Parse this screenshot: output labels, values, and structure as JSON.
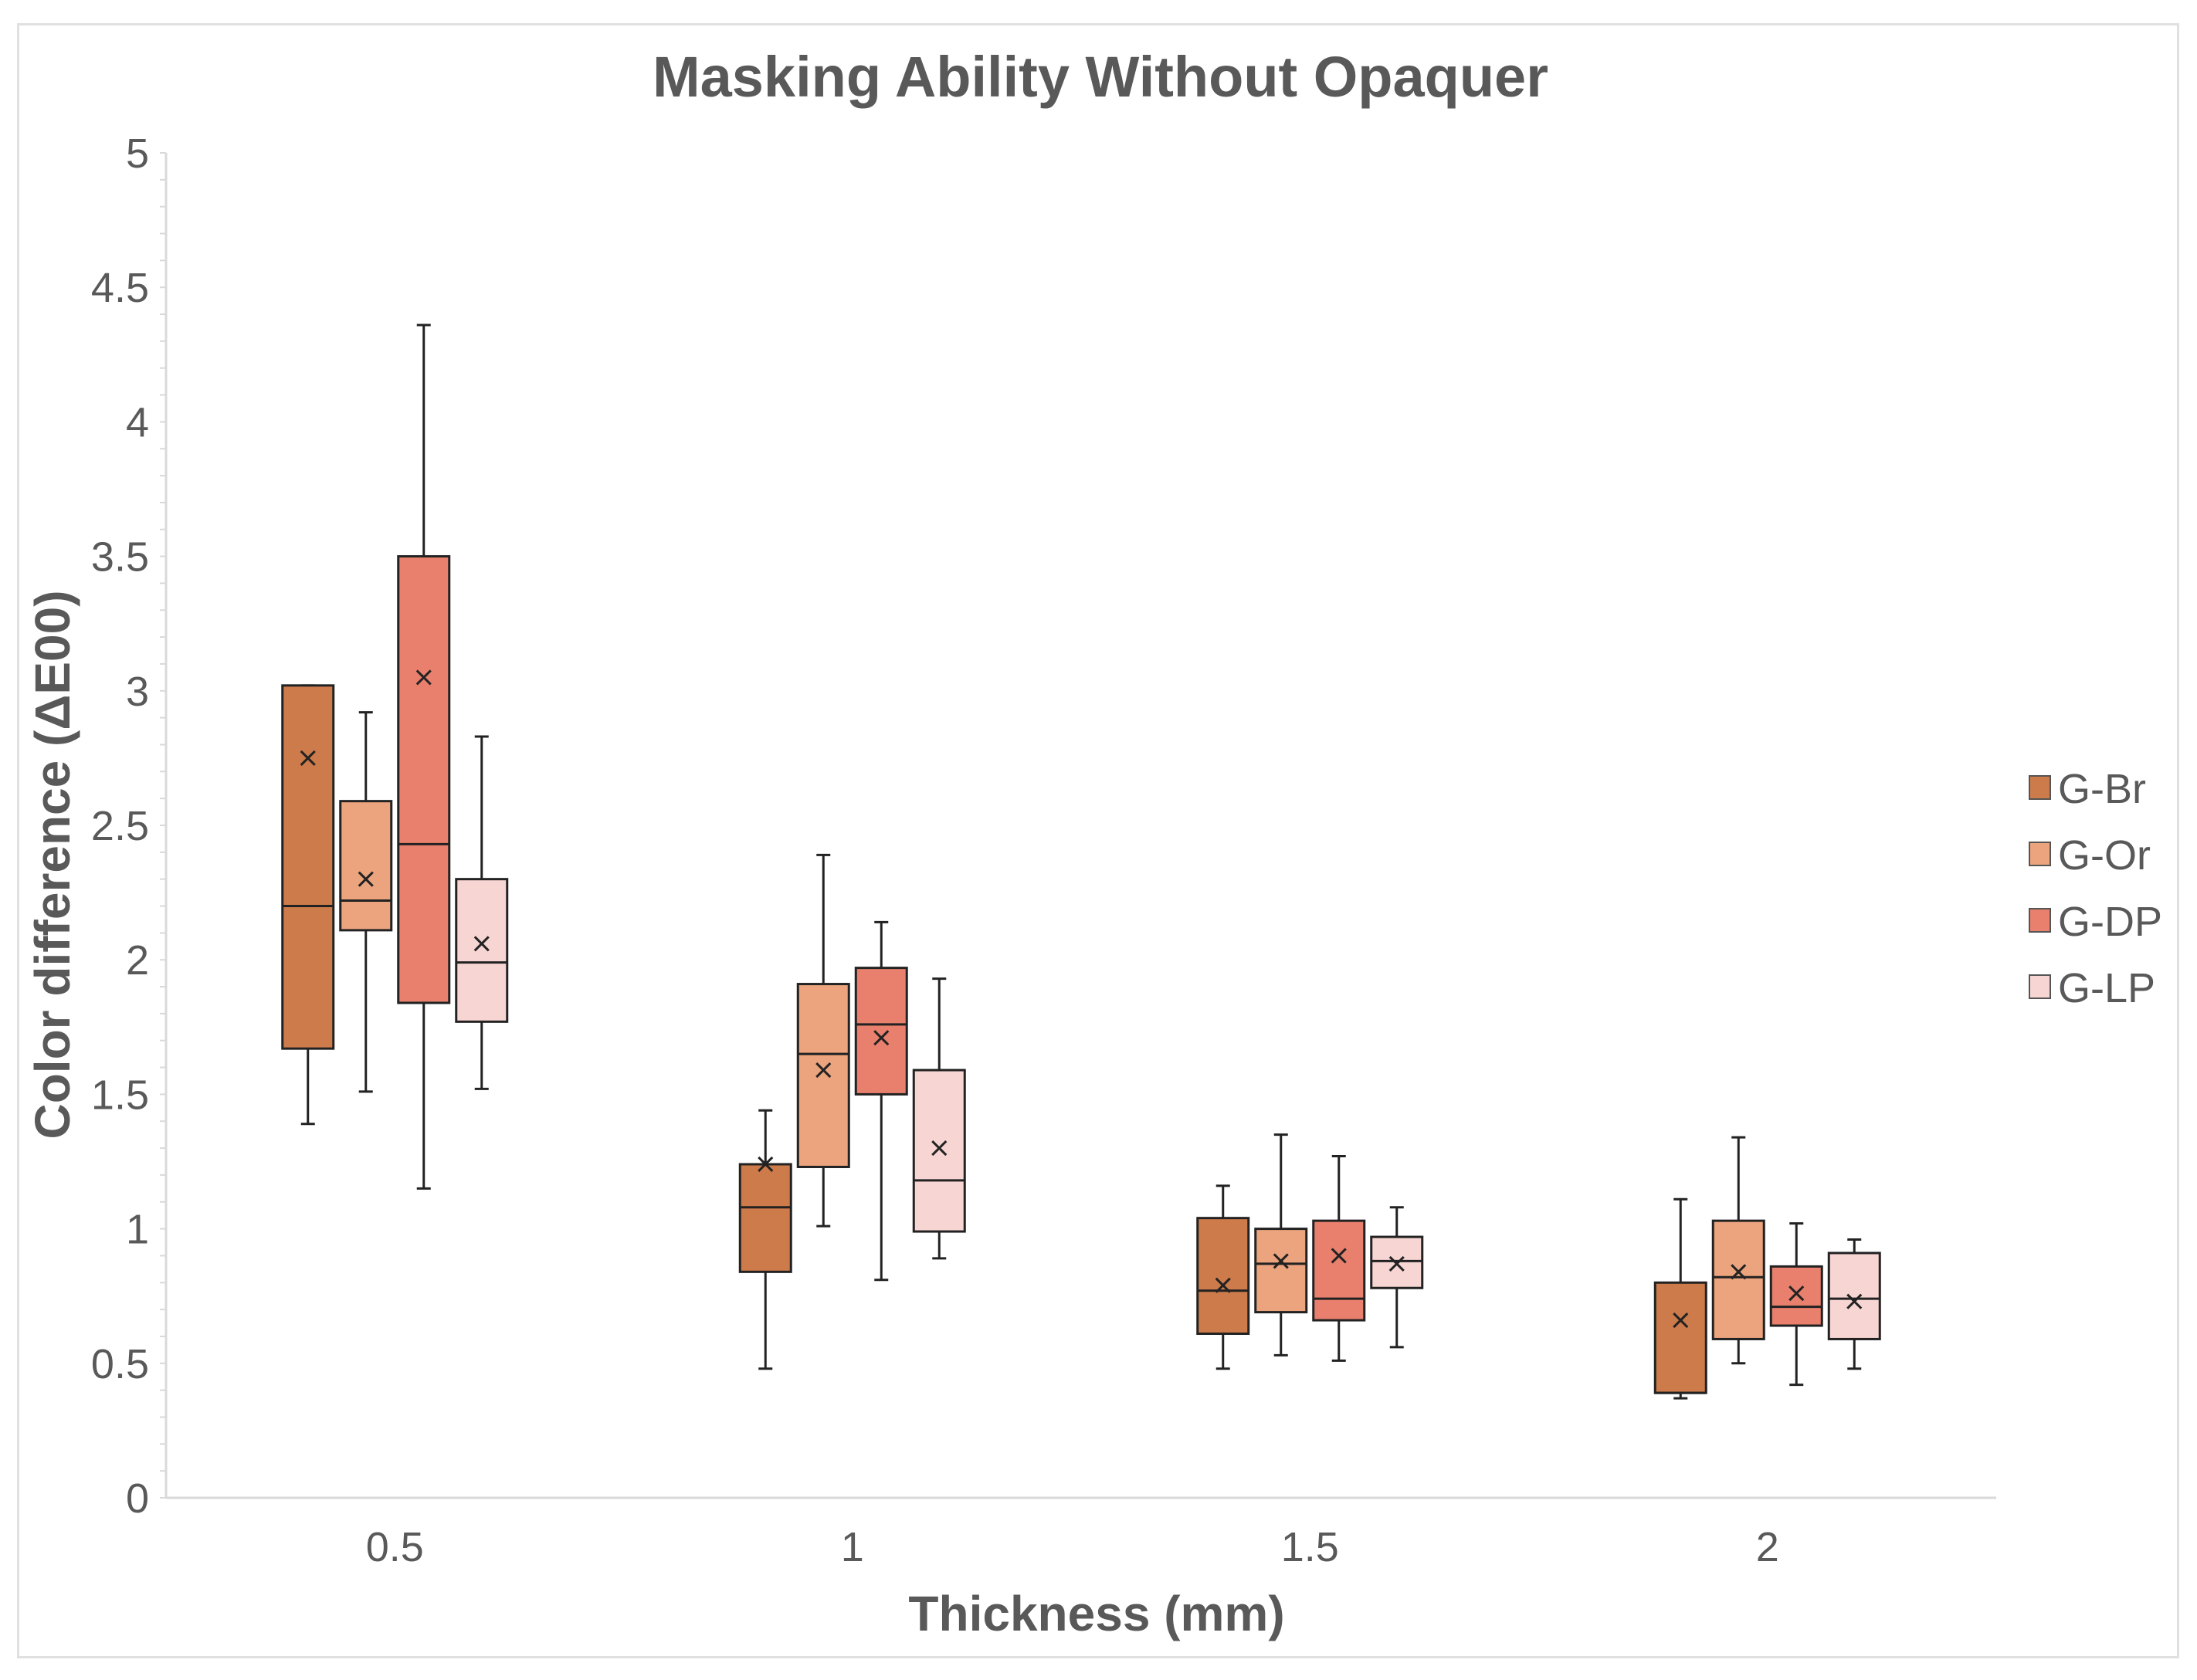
{
  "chart_data": {
    "type": "boxplot",
    "title": "Masking Ability Without Opaquer",
    "xlabel": "Thickness (mm)",
    "ylabel": "Color difference (ΔE00)",
    "ylim": [
      0,
      5
    ],
    "yticks": [
      "0",
      "0.5",
      "1",
      "1.5",
      "2",
      "2.5",
      "3",
      "3.5",
      "4",
      "4.5",
      "5"
    ],
    "categories": [
      "0.5",
      "1",
      "1.5",
      "2"
    ],
    "legend_position": "right",
    "series": [
      {
        "name": "G-Br",
        "color": "#CD7B4B",
        "boxes": [
          {
            "min": 1.39,
            "q1": 1.67,
            "median": 2.2,
            "q3": 3.02,
            "max": 3.02,
            "mean": 2.75
          },
          {
            "min": 0.48,
            "q1": 0.84,
            "median": 1.08,
            "q3": 1.24,
            "max": 1.44,
            "mean": 1.24
          },
          {
            "min": 0.48,
            "q1": 0.61,
            "median": 0.77,
            "q3": 1.04,
            "max": 1.16,
            "mean": 0.79
          },
          {
            "min": 0.37,
            "q1": 0.39,
            "median": 0.39,
            "q3": 0.8,
            "max": 1.11,
            "mean": 0.66
          }
        ]
      },
      {
        "name": "G-Or",
        "color": "#EBA47E",
        "boxes": [
          {
            "min": 1.51,
            "q1": 2.11,
            "median": 2.22,
            "q3": 2.59,
            "max": 2.92,
            "mean": 2.3
          },
          {
            "min": 1.01,
            "q1": 1.23,
            "median": 1.65,
            "q3": 1.91,
            "max": 2.39,
            "mean": 1.59
          },
          {
            "min": 0.53,
            "q1": 0.69,
            "median": 0.87,
            "q3": 1.0,
            "max": 1.35,
            "mean": 0.88
          },
          {
            "min": 0.5,
            "q1": 0.59,
            "median": 0.82,
            "q3": 1.03,
            "max": 1.34,
            "mean": 0.84
          }
        ]
      },
      {
        "name": "G-DP",
        "color": "#E9806D",
        "boxes": [
          {
            "min": 1.15,
            "q1": 1.84,
            "median": 2.43,
            "q3": 3.5,
            "max": 4.36,
            "mean": 3.05
          },
          {
            "min": 0.81,
            "q1": 1.5,
            "median": 1.76,
            "q3": 1.97,
            "max": 2.14,
            "mean": 1.71
          },
          {
            "min": 0.51,
            "q1": 0.66,
            "median": 0.74,
            "q3": 1.03,
            "max": 1.27,
            "mean": 0.9
          },
          {
            "min": 0.42,
            "q1": 0.64,
            "median": 0.71,
            "q3": 0.86,
            "max": 1.02,
            "mean": 0.76
          }
        ]
      },
      {
        "name": "G-LP",
        "color": "#F7D5D3",
        "boxes": [
          {
            "min": 1.52,
            "q1": 1.77,
            "median": 1.99,
            "q3": 2.3,
            "max": 2.83,
            "mean": 2.06
          },
          {
            "min": 0.89,
            "q1": 0.99,
            "median": 1.18,
            "q3": 1.59,
            "max": 1.93,
            "mean": 1.3
          },
          {
            "min": 0.56,
            "q1": 0.78,
            "median": 0.88,
            "q3": 0.97,
            "max": 1.08,
            "mean": 0.87
          },
          {
            "min": 0.48,
            "q1": 0.59,
            "median": 0.74,
            "q3": 0.91,
            "max": 0.96,
            "mean": 0.73
          }
        ]
      }
    ]
  }
}
